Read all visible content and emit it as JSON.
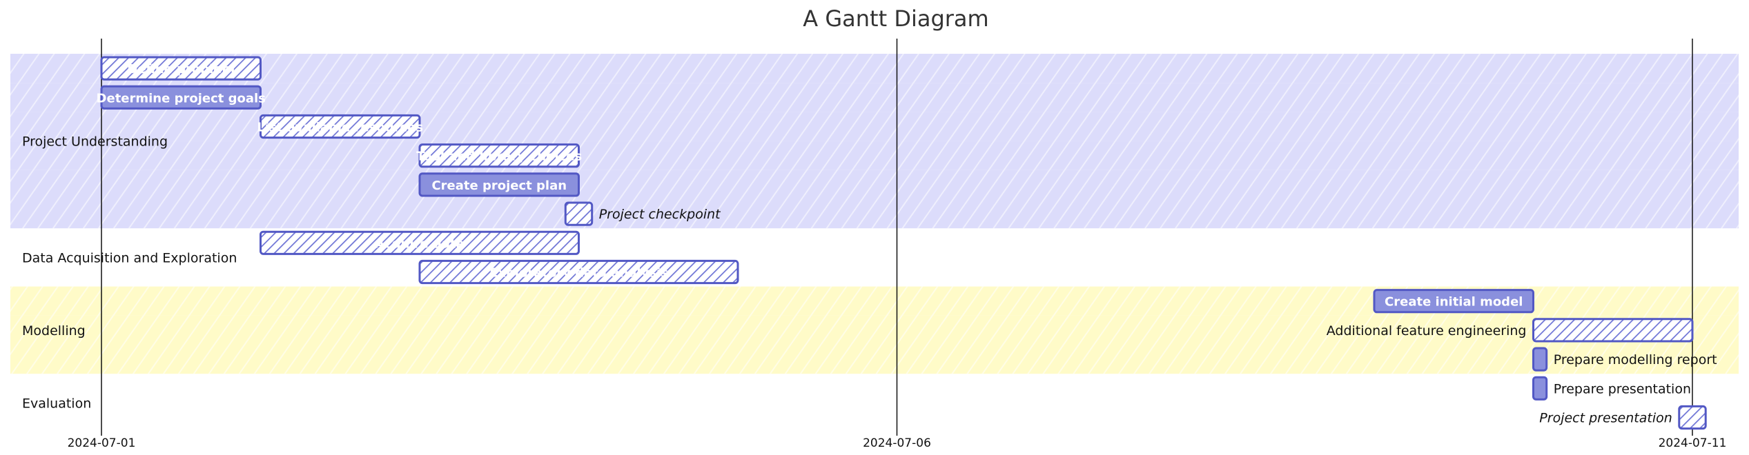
{
  "chart_data": {
    "type": "gantt",
    "title": "A Gantt Diagram",
    "x_axis": {
      "type": "date",
      "range": [
        "2024-07-01",
        "2024-07-11"
      ],
      "ticks": [
        "2024-07-01",
        "2024-07-06",
        "2024-07-11"
      ]
    },
    "sections": [
      {
        "name": "Project Understanding",
        "band_color": "#dcdcfb",
        "tasks": [
          {
            "name": "Define problem",
            "start": "2024-07-01",
            "end": "2024-07-02",
            "status": "done",
            "label_position": "inside"
          },
          {
            "name": "Determine project goals",
            "start": "2024-07-01",
            "end": "2024-07-02",
            "status": "active",
            "label_position": "inside"
          },
          {
            "name": "List available resources",
            "start": "2024-07-02",
            "end": "2024-07-03",
            "status": "done",
            "label_position": "inside"
          },
          {
            "name": "Tool and library choices",
            "start": "2024-07-03",
            "end": "2024-07-04",
            "status": "done",
            "label_position": "inside"
          },
          {
            "name": "Create project plan",
            "start": "2024-07-03",
            "end": "2024-07-04",
            "status": "active",
            "label_position": "inside"
          },
          {
            "name": "Project checkpoint",
            "start": "2024-07-03 22:00",
            "end": "2024-07-04 02:00",
            "status": "milestone",
            "label_position": "right"
          }
        ]
      },
      {
        "name": "Data Acquisition and Exploration",
        "band_color": "#ffffff",
        "tasks": [
          {
            "name": "Acquire data",
            "start": "2024-07-02",
            "end": "2024-07-04",
            "status": "done",
            "label_position": "inside"
          },
          {
            "name": "Exploratory data analysis",
            "start": "2024-07-03",
            "end": "2024-07-05",
            "status": "done",
            "label_position": "inside"
          }
        ]
      },
      {
        "name": "Modelling",
        "band_color": "#fffbc8",
        "tasks": [
          {
            "name": "Create initial model",
            "start": "2024-07-09",
            "end": "2024-07-10",
            "status": "active",
            "label_position": "inside"
          },
          {
            "name": "Additional feature engineering",
            "start": "2024-07-10",
            "end": "2024-07-11",
            "status": "done",
            "label_position": "left"
          },
          {
            "name": "Prepare modelling report",
            "start": "2024-07-10",
            "end": "2024-07-10 02:00",
            "status": "active",
            "label_position": "right"
          }
        ]
      },
      {
        "name": "Evaluation",
        "band_color": "#ffffff",
        "tasks": [
          {
            "name": "Prepare presentation",
            "start": "2024-07-10",
            "end": "2024-07-10 02:00",
            "status": "active",
            "label_position": "right"
          },
          {
            "name": "Project presentation",
            "start": "2024-07-10 22:00",
            "end": "2024-07-11 02:00",
            "status": "milestone",
            "label_position": "left"
          }
        ]
      }
    ]
  },
  "colors": {
    "bar_fill": "#8a90dd",
    "bar_border": "#5258c4",
    "hatch": "#d6d8f6",
    "axis_line": "#111111"
  }
}
